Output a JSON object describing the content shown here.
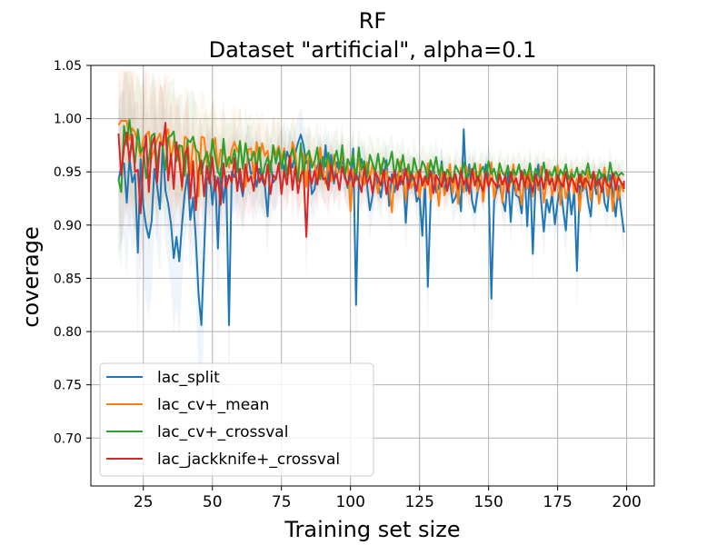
{
  "chart_data": {
    "type": "line",
    "title": "RF",
    "subtitle": "Dataset \"artificial\", alpha=0.1",
    "xlabel": "Training set size",
    "ylabel": "coverage",
    "xlim": [
      6,
      210
    ],
    "ylim": [
      0.655,
      1.05
    ],
    "x_ticks": [
      25,
      50,
      75,
      100,
      125,
      150,
      175,
      200
    ],
    "x_tick_labels": [
      "25",
      "50",
      "75",
      "100",
      "125",
      "150",
      "175",
      "200"
    ],
    "y_ticks": [
      0.7,
      0.75,
      0.8,
      0.85,
      0.9,
      0.95,
      1.0,
      1.05
    ],
    "y_tick_labels": [
      "0.70",
      "0.75",
      "0.80",
      "0.85",
      "0.90",
      "0.95",
      "1.00",
      "1.05"
    ],
    "grid": true,
    "legend_position": "lower-left",
    "x": {
      "start": 16,
      "end": 199,
      "step": 1
    },
    "series": [
      {
        "name": "lac_split",
        "color": "#1f77b4",
        "values": [
          0.942,
          0.955,
          0.958,
          0.921,
          0.963,
          0.94,
          0.948,
          0.874,
          0.962,
          0.918,
          0.899,
          0.888,
          0.904,
          0.953,
          0.937,
          0.915,
          0.974,
          0.932,
          0.92,
          0.902,
          0.869,
          0.889,
          0.866,
          0.901,
          0.93,
          0.948,
          0.905,
          0.926,
          0.887,
          0.835,
          0.806,
          0.875,
          0.942,
          0.95,
          0.919,
          0.946,
          0.878,
          0.953,
          0.921,
          0.946,
          0.806,
          0.95,
          0.945,
          0.958,
          0.941,
          0.927,
          0.95,
          0.963,
          0.948,
          0.951,
          0.936,
          0.953,
          0.942,
          0.937,
          0.908,
          0.96,
          0.94,
          0.944,
          0.956,
          0.964,
          0.95,
          0.969,
          0.962,
          0.954,
          0.967,
          0.977,
          0.985,
          0.975,
          0.958,
          0.962,
          0.929,
          0.934,
          0.955,
          0.962,
          0.945,
          0.975,
          0.938,
          0.966,
          0.939,
          0.959,
          0.95,
          0.962,
          0.947,
          0.935,
          0.946,
          0.972,
          0.825,
          0.942,
          0.962,
          0.953,
          0.938,
          0.914,
          0.928,
          0.946,
          0.939,
          0.926,
          0.945,
          0.961,
          0.918,
          0.948,
          0.931,
          0.948,
          0.938,
          0.952,
          0.902,
          0.944,
          0.95,
          0.941,
          0.922,
          0.928,
          0.89,
          0.943,
          0.842,
          0.921,
          0.955,
          0.931,
          0.935,
          0.96,
          0.931,
          0.944,
          0.941,
          0.921,
          0.926,
          0.937,
          0.913,
          0.99,
          0.932,
          0.957,
          0.923,
          0.912,
          0.931,
          0.942,
          0.928,
          0.957,
          0.944,
          0.831,
          0.923,
          0.934,
          0.938,
          0.924,
          0.913,
          0.95,
          0.903,
          0.941,
          0.928,
          0.926,
          0.911,
          0.952,
          0.899,
          0.953,
          0.873,
          0.938,
          0.957,
          0.923,
          0.894,
          0.924,
          0.912,
          0.929,
          0.901,
          0.922,
          0.938,
          0.915,
          0.895,
          0.935,
          0.91,
          0.932,
          0.857,
          0.937,
          0.932,
          0.943,
          0.922,
          0.908,
          0.944,
          0.929,
          0.941,
          0.948,
          0.921,
          0.913,
          0.947,
          0.931,
          0.908,
          0.937,
          0.914,
          0.893
        ]
      },
      {
        "name": "lac_cv+_mean",
        "color": "#ff7f0e",
        "values": [
          0.994,
          0.998,
          0.998,
          0.998,
          0.98,
          0.991,
          0.987,
          0.976,
          0.964,
          0.981,
          0.985,
          0.988,
          0.963,
          0.971,
          0.98,
          0.986,
          0.972,
          0.984,
          0.99,
          0.961,
          0.979,
          0.96,
          0.975,
          0.933,
          0.983,
          0.981,
          0.947,
          0.978,
          0.97,
          0.927,
          0.983,
          0.982,
          0.958,
          0.966,
          0.972,
          0.982,
          0.952,
          0.971,
          0.968,
          0.963,
          0.954,
          0.971,
          0.978,
          0.969,
          0.977,
          0.956,
          0.936,
          0.971,
          0.972,
          0.944,
          0.978,
          0.961,
          0.977,
          0.965,
          0.97,
          0.948,
          0.975,
          0.966,
          0.974,
          0.96,
          0.972,
          0.946,
          0.949,
          0.978,
          0.968,
          0.943,
          0.941,
          0.967,
          0.936,
          0.969,
          0.96,
          0.957,
          0.944,
          0.973,
          0.951,
          0.939,
          0.962,
          0.941,
          0.966,
          0.947,
          0.951,
          0.967,
          0.948,
          0.958,
          0.913,
          0.953,
          0.949,
          0.962,
          0.941,
          0.938,
          0.959,
          0.944,
          0.958,
          0.942,
          0.93,
          0.957,
          0.941,
          0.951,
          0.936,
          0.912,
          0.952,
          0.939,
          0.96,
          0.945,
          0.923,
          0.957,
          0.935,
          0.941,
          0.949,
          0.926,
          0.944,
          0.935,
          0.958,
          0.924,
          0.948,
          0.945,
          0.918,
          0.952,
          0.928,
          0.935,
          0.957,
          0.93,
          0.948,
          0.92,
          0.954,
          0.931,
          0.955,
          0.929,
          0.943,
          0.95,
          0.932,
          0.957,
          0.922,
          0.944,
          0.937,
          0.959,
          0.925,
          0.94,
          0.951,
          0.921,
          0.949,
          0.931,
          0.941,
          0.957,
          0.93,
          0.938,
          0.919,
          0.949,
          0.934,
          0.953,
          0.927,
          0.946,
          0.933,
          0.955,
          0.921,
          0.941,
          0.951,
          0.928,
          0.938,
          0.956,
          0.919,
          0.948,
          0.925,
          0.937,
          0.952,
          0.93,
          0.944,
          0.913,
          0.946,
          0.934,
          0.951,
          0.923,
          0.94,
          0.947,
          0.92,
          0.938,
          0.954,
          0.927,
          0.941,
          0.913,
          0.946,
          0.924,
          0.939,
          0.931
        ]
      },
      {
        "name": "lac_cv+_crossval",
        "color": "#2ca02c",
        "values": [
          0.943,
          0.931,
          0.993,
          0.975,
          0.999,
          0.974,
          0.958,
          0.99,
          0.968,
          0.973,
          0.944,
          0.961,
          0.984,
          0.986,
          0.955,
          0.977,
          0.974,
          0.952,
          0.982,
          0.984,
          0.988,
          0.96,
          0.975,
          0.974,
          0.946,
          0.98,
          0.978,
          0.983,
          0.971,
          0.968,
          0.948,
          0.961,
          0.969,
          0.951,
          0.981,
          0.964,
          0.95,
          0.945,
          0.981,
          0.955,
          0.964,
          0.958,
          0.971,
          0.95,
          0.979,
          0.953,
          0.977,
          0.961,
          0.961,
          0.969,
          0.954,
          0.973,
          0.944,
          0.956,
          0.964,
          0.95,
          0.975,
          0.958,
          0.972,
          0.953,
          0.969,
          0.947,
          0.963,
          0.972,
          0.958,
          0.941,
          0.977,
          0.948,
          0.965,
          0.97,
          0.954,
          0.96,
          0.973,
          0.943,
          0.964,
          0.955,
          0.968,
          0.949,
          0.961,
          0.97,
          0.953,
          0.975,
          0.946,
          0.962,
          0.956,
          0.967,
          0.942,
          0.973,
          0.952,
          0.96,
          0.945,
          0.966,
          0.958,
          0.95,
          0.967,
          0.948,
          0.963,
          0.954,
          0.958,
          0.969,
          0.945,
          0.962,
          0.95,
          0.966,
          0.947,
          0.957,
          0.941,
          0.963,
          0.952,
          0.946,
          0.96,
          0.955,
          0.943,
          0.961,
          0.95,
          0.964,
          0.947,
          0.957,
          0.942,
          0.952,
          0.948,
          0.94,
          0.956,
          0.951,
          0.945,
          0.959,
          0.943,
          0.952,
          0.947,
          0.958,
          0.941,
          0.95,
          0.955,
          0.944,
          0.96,
          0.948,
          0.953,
          0.942,
          0.958,
          0.949,
          0.946,
          0.956,
          0.94,
          0.952,
          0.947,
          0.957,
          0.943,
          0.951,
          0.945,
          0.958,
          0.941,
          0.953,
          0.948,
          0.944,
          0.959,
          0.942,
          0.95,
          0.946,
          0.955,
          0.941,
          0.952,
          0.947,
          0.957,
          0.943,
          0.949,
          0.945,
          0.954,
          0.94,
          0.951,
          0.947,
          0.958,
          0.944,
          0.95,
          0.939,
          0.952,
          0.945,
          0.948,
          0.941,
          0.959,
          0.944,
          0.95,
          0.946,
          0.949,
          0.947
        ]
      },
      {
        "name": "lac_jackknife+_crossval",
        "color": "#d62728",
        "values": [
          0.986,
          0.947,
          0.973,
          0.987,
          0.96,
          0.985,
          0.95,
          0.952,
          0.911,
          0.962,
          0.984,
          0.931,
          0.975,
          0.983,
          0.94,
          0.978,
          0.975,
          0.996,
          0.942,
          0.967,
          0.934,
          0.978,
          0.96,
          0.936,
          0.966,
          0.973,
          0.925,
          0.96,
          0.914,
          0.951,
          0.961,
          0.927,
          0.956,
          0.939,
          0.964,
          0.932,
          0.945,
          0.919,
          0.958,
          0.935,
          0.947,
          0.94,
          0.963,
          0.932,
          0.953,
          0.931,
          0.957,
          0.941,
          0.946,
          0.932,
          0.958,
          0.94,
          0.948,
          0.937,
          0.957,
          0.929,
          0.947,
          0.943,
          0.958,
          0.929,
          0.951,
          0.938,
          0.965,
          0.933,
          0.955,
          0.93,
          0.947,
          0.951,
          0.889,
          0.951,
          0.939,
          0.951,
          0.938,
          0.958,
          0.943,
          0.944,
          0.933,
          0.957,
          0.942,
          0.948,
          0.933,
          0.955,
          0.944,
          0.938,
          0.952,
          0.936,
          0.948,
          0.941,
          0.931,
          0.954,
          0.939,
          0.946,
          0.93,
          0.95,
          0.944,
          0.937,
          0.952,
          0.929,
          0.945,
          0.94,
          0.951,
          0.933,
          0.946,
          0.938,
          0.953,
          0.934,
          0.948,
          0.944,
          0.932,
          0.952,
          0.937,
          0.946,
          0.938,
          0.951,
          0.93,
          0.947,
          0.942,
          0.936,
          0.95,
          0.932,
          0.945,
          0.94,
          0.948,
          0.934,
          0.951,
          0.938,
          0.944,
          0.931,
          0.953,
          0.937,
          0.946,
          0.939,
          0.932,
          0.95,
          0.936,
          0.944,
          0.94,
          0.935,
          0.948,
          0.938,
          0.946,
          0.931,
          0.95,
          0.939,
          0.944,
          0.933,
          0.951,
          0.936,
          0.946,
          0.94,
          0.931,
          0.948,
          0.937,
          0.945,
          0.934,
          0.952,
          0.938,
          0.944,
          0.932,
          0.947,
          0.94,
          0.936,
          0.95,
          0.933,
          0.945,
          0.939,
          0.931,
          0.948,
          0.936,
          0.944,
          0.94,
          0.933,
          0.95,
          0.937,
          0.943,
          0.931,
          0.946,
          0.938,
          0.935,
          0.949,
          0.933,
          0.945,
          0.94,
          0.936,
          0.941,
          0.934
        ]
      }
    ]
  }
}
